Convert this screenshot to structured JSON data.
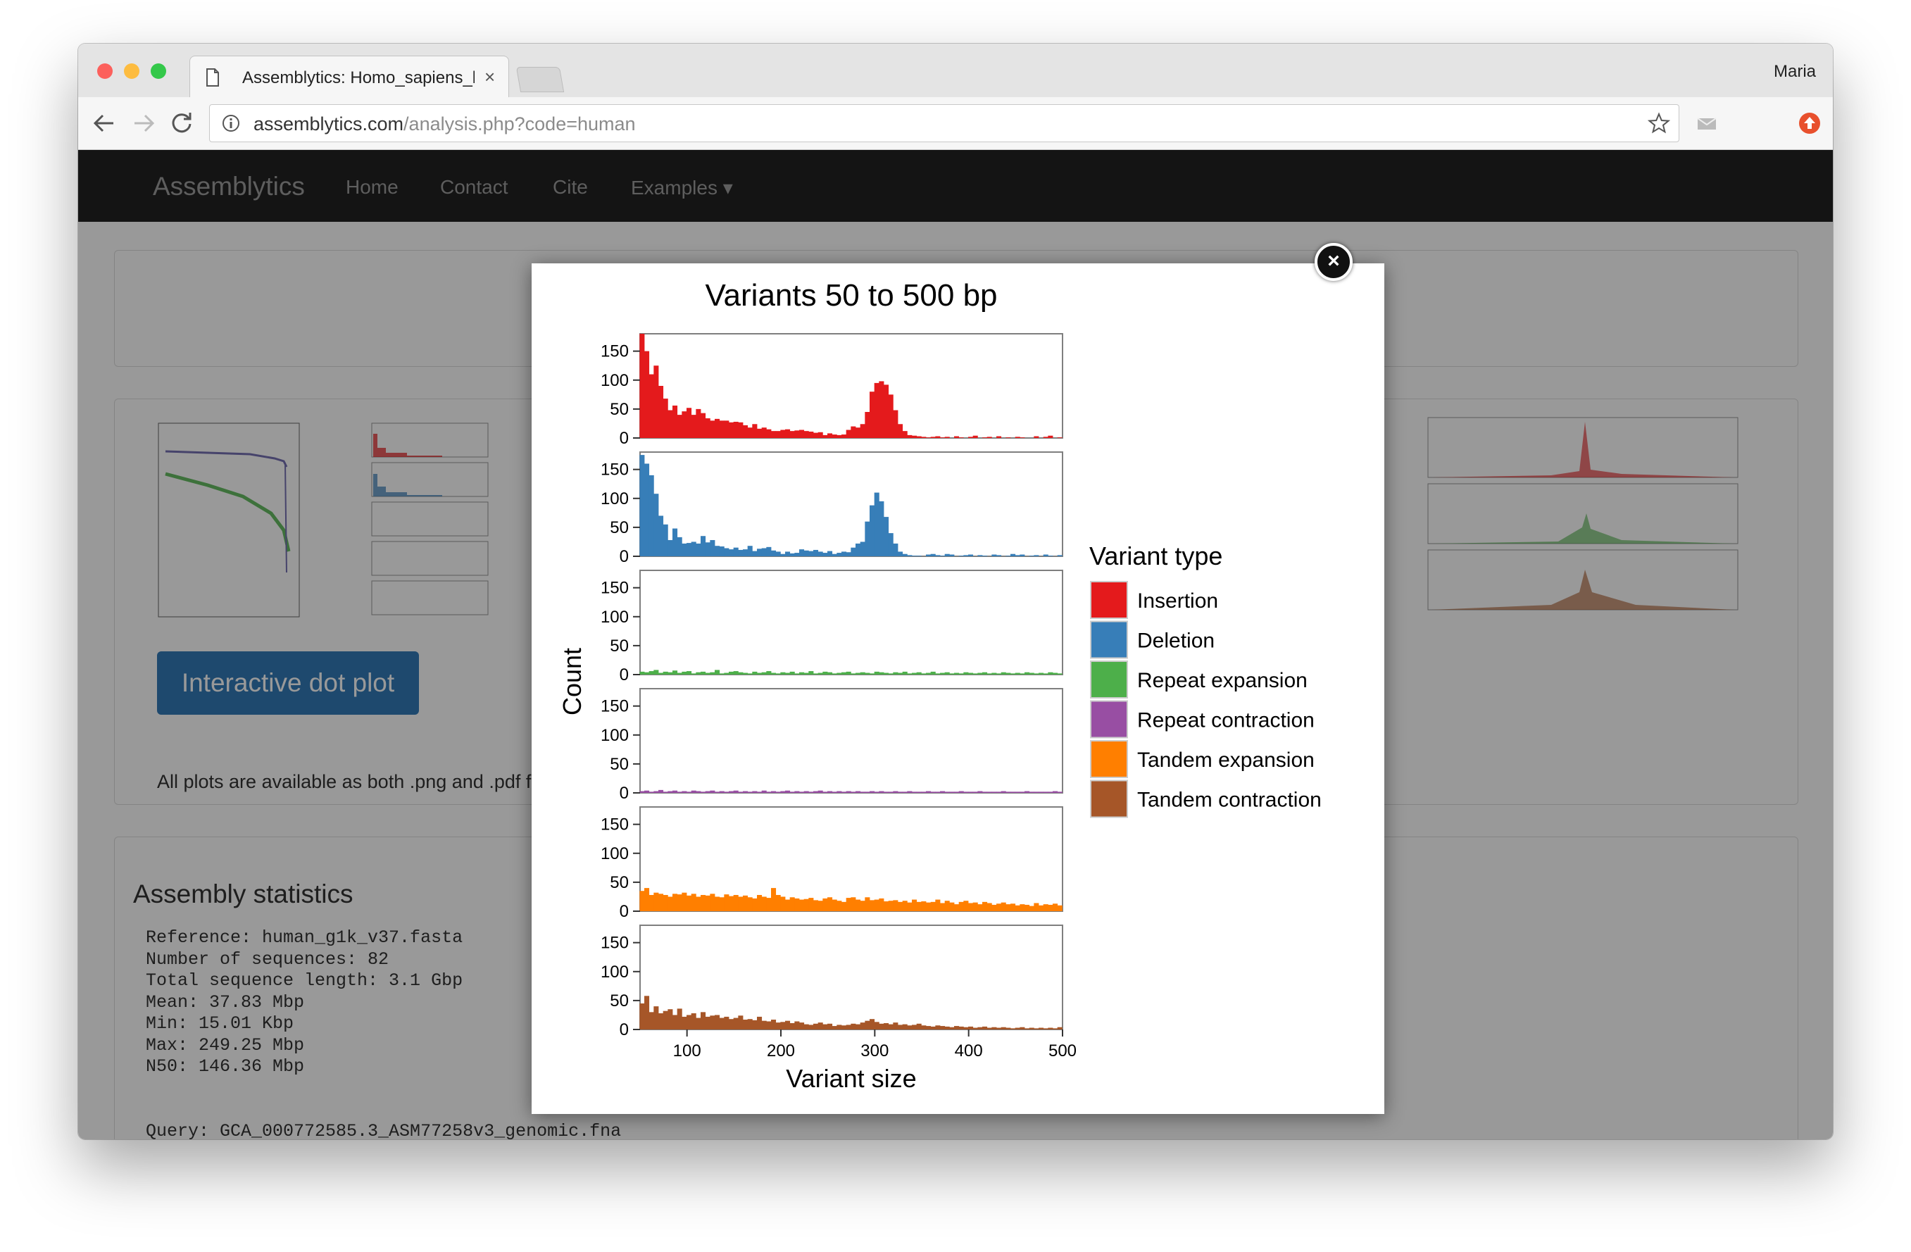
{
  "browser": {
    "tab_title": "Assemblytics: Homo_sapiens_h",
    "tab_close": "×",
    "profile_name": "Maria",
    "url_host": "assemblytics.com",
    "url_path": "/analysis.php?code=human",
    "back_icon": "back-arrow-icon",
    "forward_icon": "forward-arrow-icon",
    "reload_icon": "reload-icon",
    "info_icon": "info-icon",
    "bookmark_icon": "star-icon",
    "colors": {
      "close": "#fc605c",
      "minimize": "#fdbc40",
      "zoom": "#34c84a"
    }
  },
  "navbar": {
    "brand": "Assemblytics",
    "links": [
      "Home",
      "Contact",
      "Cite",
      "Examples"
    ],
    "dropdown_caret": "▾"
  },
  "page": {
    "dotplot_button": "Interactive dot plot",
    "plots_note": "All plots are available as both .png and .pdf file",
    "stats_heading": "Assembly statistics",
    "stats_text": "Reference: human_g1k_v37.fasta\nNumber of sequences: 82\nTotal sequence length: 3.1 Gbp\nMean: 37.83 Mbp\nMin: 15.01 Kbp\nMax: 249.25 Mbp\nN50: 146.36 Mbp\n\n\nQuery: GCA_000772585.3_ASM77258v3_genomic.fna"
  },
  "modal": {
    "close_icon": "close-circle-icon",
    "close_glyph": "×"
  },
  "chart_data": {
    "type": "bar",
    "title": "Variants 50 to 500 bp",
    "xlabel": "Variant size",
    "ylabel": "Count",
    "xlim": [
      50,
      500
    ],
    "ylim": [
      0,
      180
    ],
    "xticks": [
      100,
      200,
      300,
      400,
      500
    ],
    "yticks": [
      0,
      50,
      100,
      150
    ],
    "bin_width": 5,
    "legend_title": "Variant type",
    "legend_position": "right",
    "x": [
      52,
      57,
      62,
      67,
      72,
      77,
      82,
      87,
      92,
      97,
      102,
      107,
      112,
      117,
      122,
      127,
      132,
      137,
      142,
      147,
      152,
      157,
      162,
      167,
      172,
      177,
      182,
      187,
      192,
      197,
      202,
      207,
      212,
      217,
      222,
      227,
      232,
      237,
      242,
      247,
      252,
      257,
      262,
      267,
      272,
      277,
      282,
      287,
      292,
      297,
      302,
      307,
      312,
      317,
      322,
      327,
      332,
      337,
      342,
      347,
      352,
      357,
      362,
      367,
      372,
      377,
      382,
      387,
      392,
      397,
      402,
      407,
      412,
      417,
      422,
      427,
      432,
      437,
      442,
      447,
      452,
      457,
      462,
      467,
      472,
      477,
      482,
      487,
      492,
      497
    ],
    "series": [
      {
        "name": "Insertion",
        "color": "#e41a1c",
        "values": [
          180,
          150,
          110,
          125,
          90,
          68,
          48,
          56,
          40,
          46,
          52,
          40,
          50,
          43,
          34,
          30,
          33,
          30,
          30,
          27,
          28,
          27,
          22,
          18,
          24,
          16,
          18,
          15,
          12,
          12,
          14,
          15,
          12,
          13,
          14,
          12,
          11,
          9,
          10,
          5,
          8,
          6,
          5,
          6,
          14,
          20,
          18,
          24,
          45,
          80,
          95,
          98,
          92,
          75,
          48,
          24,
          12,
          5,
          4,
          3,
          2,
          1,
          2,
          3,
          1,
          2,
          0,
          3,
          1,
          0,
          2,
          4,
          0,
          1,
          2,
          0,
          3,
          0,
          1,
          0,
          2,
          1,
          0,
          0,
          3,
          0,
          2,
          4,
          0,
          1
        ]
      },
      {
        "name": "Deletion",
        "color": "#377eb8",
        "values": [
          175,
          160,
          140,
          108,
          70,
          55,
          28,
          48,
          33,
          22,
          23,
          25,
          22,
          35,
          24,
          28,
          18,
          17,
          14,
          12,
          15,
          11,
          12,
          18,
          9,
          13,
          14,
          16,
          10,
          8,
          4,
          8,
          5,
          6,
          12,
          10,
          9,
          11,
          8,
          6,
          9,
          4,
          6,
          8,
          7,
          15,
          22,
          25,
          60,
          88,
          110,
          95,
          68,
          40,
          22,
          8,
          4,
          2,
          1,
          1,
          0,
          3,
          4,
          2,
          1,
          4,
          3,
          0,
          1,
          2,
          3,
          0,
          2,
          1,
          0,
          3,
          2,
          0,
          1,
          4,
          2,
          3,
          0,
          1,
          2,
          0,
          3,
          1,
          0,
          2
        ]
      },
      {
        "name": "Repeat expansion",
        "color": "#4daf4a",
        "values": [
          5,
          4,
          6,
          8,
          3,
          5,
          4,
          7,
          3,
          5,
          6,
          2,
          4,
          5,
          3,
          4,
          8,
          2,
          3,
          5,
          6,
          4,
          3,
          2,
          5,
          3,
          4,
          6,
          3,
          2,
          4,
          3,
          5,
          2,
          4,
          3,
          6,
          2,
          3,
          5,
          4,
          2,
          3,
          4,
          5,
          2,
          3,
          4,
          3,
          2,
          5,
          4,
          3,
          2,
          4,
          3,
          5,
          2,
          3,
          4,
          2,
          3,
          5,
          2,
          3,
          4,
          2,
          3,
          2,
          4,
          3,
          2,
          3,
          4,
          2,
          3,
          2,
          4,
          3,
          2,
          3,
          2,
          4,
          3,
          2,
          3,
          2,
          4,
          3,
          2
        ]
      },
      {
        "name": "Repeat contraction",
        "color": "#984ea3",
        "values": [
          3,
          4,
          2,
          3,
          5,
          2,
          3,
          4,
          2,
          3,
          2,
          4,
          3,
          2,
          3,
          4,
          2,
          3,
          2,
          3,
          4,
          2,
          3,
          2,
          3,
          2,
          4,
          2,
          3,
          2,
          3,
          4,
          2,
          3,
          2,
          3,
          2,
          3,
          4,
          2,
          3,
          2,
          3,
          2,
          3,
          2,
          3,
          2,
          2,
          3,
          2,
          3,
          2,
          2,
          3,
          2,
          2,
          3,
          2,
          2,
          2,
          3,
          2,
          2,
          3,
          2,
          2,
          2,
          3,
          2,
          2,
          2,
          3,
          2,
          2,
          2,
          2,
          3,
          2,
          2,
          2,
          2,
          3,
          2,
          2,
          2,
          2,
          2,
          3,
          2
        ]
      },
      {
        "name": "Tandem expansion",
        "color": "#ff7f00",
        "values": [
          35,
          40,
          28,
          32,
          30,
          28,
          25,
          30,
          29,
          32,
          27,
          30,
          25,
          28,
          27,
          30,
          25,
          24,
          29,
          26,
          28,
          25,
          27,
          24,
          22,
          28,
          25,
          23,
          40,
          28,
          25,
          20,
          24,
          22,
          20,
          21,
          23,
          19,
          18,
          22,
          24,
          20,
          18,
          16,
          23,
          24,
          20,
          18,
          24,
          19,
          20,
          22,
          17,
          18,
          19,
          16,
          18,
          15,
          20,
          16,
          17,
          15,
          16,
          20,
          14,
          18,
          15,
          12,
          16,
          18,
          14,
          15,
          12,
          16,
          14,
          11,
          13,
          15,
          12,
          13,
          10,
          12,
          11,
          9,
          14,
          10,
          12,
          11,
          13,
          10
        ]
      },
      {
        "name": "Tandem contraction",
        "color": "#a65628",
        "values": [
          45,
          58,
          30,
          40,
          28,
          32,
          35,
          25,
          36,
          22,
          25,
          28,
          20,
          30,
          22,
          24,
          25,
          20,
          22,
          18,
          20,
          24,
          17,
          18,
          16,
          22,
          15,
          14,
          17,
          12,
          13,
          15,
          11,
          14,
          12,
          9,
          8,
          10,
          12,
          9,
          10,
          6,
          8,
          7,
          8,
          10,
          9,
          12,
          15,
          18,
          13,
          10,
          11,
          9,
          12,
          8,
          9,
          7,
          8,
          10,
          7,
          6,
          5,
          7,
          6,
          5,
          4,
          6,
          5,
          4,
          5,
          3,
          4,
          5,
          3,
          4,
          3,
          4,
          3,
          2,
          3,
          4,
          2,
          3,
          2,
          3,
          2,
          3,
          2,
          4
        ]
      }
    ]
  }
}
